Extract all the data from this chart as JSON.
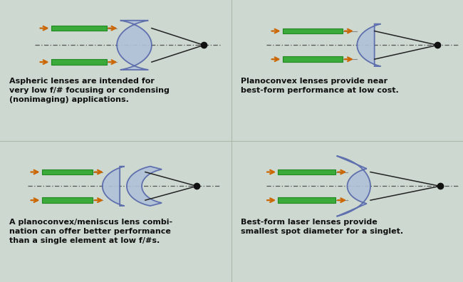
{
  "bg_color": "#ccd8d0",
  "lens_fill": "#b0c0d8",
  "lens_edge": "#5566aa",
  "ray_color": "#222222",
  "axis_dash_color": "#555555",
  "arrow_green": "#3aaa3a",
  "arrow_orange": "#cc6600",
  "dot_color": "#111111",
  "text_color": "#111111",
  "captions": [
    "Aspheric lenses are intended for\nvery low f/# focusing or condensing\n(nonimaging) applications.",
    "Planoconvex lenses provide near\nbest-form performance at low cost.",
    "A planoconvex/meniscus lens combi-\nnation can offer better performance\nthan a single element at low f/#s.",
    "Best-form laser lenses provide\nsmallest spot diameter for a singlet."
  ],
  "figsize": [
    6.5,
    3.96
  ],
  "dpi": 100
}
